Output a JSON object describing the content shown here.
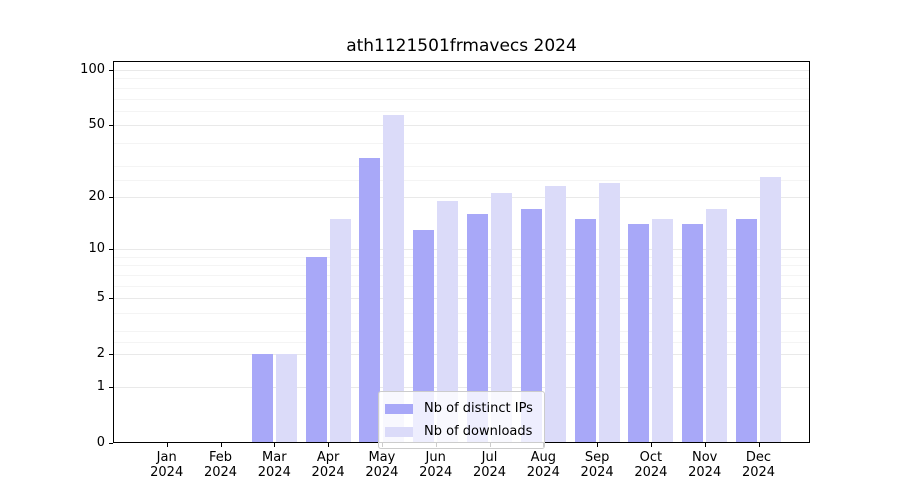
{
  "chart_data": {
    "type": "bar",
    "title": "ath1121501frmavecs 2024",
    "categories": [
      "Jan",
      "Feb",
      "Mar",
      "Apr",
      "May",
      "Jun",
      "Jul",
      "Aug",
      "Sep",
      "Oct",
      "Nov",
      "Dec"
    ],
    "x_year_label": "2024",
    "series": [
      {
        "name": "Nb of distinct IPs",
        "key": "distinct-ips",
        "color": "#a8a8f8",
        "values": [
          0,
          0,
          2,
          9,
          33,
          13,
          16,
          17,
          15,
          14,
          14,
          15
        ]
      },
      {
        "name": "Nb of downloads",
        "key": "downloads",
        "color": "#dbdbf9",
        "values": [
          0,
          0,
          2,
          15,
          57,
          19,
          21,
          23,
          24,
          15,
          17,
          26
        ]
      }
    ],
    "xlabel": "",
    "ylabel": "",
    "yscale": "log1p",
    "ylim": [
      0,
      112
    ],
    "yticks": [
      0,
      1,
      2,
      5,
      10,
      20,
      50,
      100
    ],
    "minor_gridlines": [
      2.5,
      3,
      4,
      6,
      7,
      8,
      9,
      25,
      30,
      40,
      60,
      70,
      80,
      90
    ],
    "grid": "horizontal",
    "legend_position": "lower-center-inside",
    "colors": {
      "major_grid": "#e9e9e9",
      "minor_grid": "#f4f4f4",
      "axis": "#000000",
      "background": "#ffffff"
    }
  }
}
